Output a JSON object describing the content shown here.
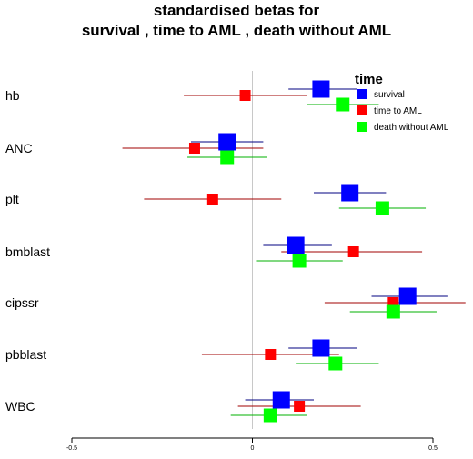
{
  "chart_data": {
    "type": "scatter",
    "title_lines": [
      "standardised betas for",
      "survival , time to AML , death without AML"
    ],
    "xlim": [
      -0.5,
      0.5
    ],
    "x_ticks": [
      -0.5,
      0,
      0.5
    ],
    "x_tick_labels": [
      "-0.5",
      "0",
      "0.5"
    ],
    "categories": [
      "hb",
      "ANC",
      "plt",
      "bmblast",
      "cipssr",
      "pbblast",
      "WBC"
    ],
    "reference_line_x": 0,
    "legend": {
      "title": "time",
      "placement": "top-right"
    },
    "series": [
      {
        "name": "survival",
        "color": "#0000ff",
        "estimates": [
          0.19,
          -0.07,
          0.27,
          0.12,
          0.43,
          0.19,
          0.08
        ],
        "lower": [
          0.1,
          -0.17,
          0.17,
          0.03,
          0.33,
          0.1,
          -0.02
        ],
        "upper": [
          0.29,
          0.03,
          0.37,
          0.22,
          0.54,
          0.29,
          0.17
        ]
      },
      {
        "name": "time to AML",
        "color": "#ff0000",
        "estimates": [
          -0.02,
          -0.16,
          -0.11,
          0.28,
          0.39,
          0.05,
          0.13
        ],
        "lower": [
          -0.19,
          -0.36,
          -0.3,
          0.08,
          0.2,
          -0.14,
          -0.04
        ],
        "upper": [
          0.15,
          0.03,
          0.08,
          0.47,
          0.59,
          0.24,
          0.3
        ]
      },
      {
        "name": "death without AML",
        "color": "#00ff00",
        "estimates": [
          0.25,
          -0.07,
          0.36,
          0.13,
          0.39,
          0.23,
          0.05
        ],
        "lower": [
          0.15,
          -0.18,
          0.24,
          0.01,
          0.27,
          0.12,
          -0.06
        ],
        "upper": [
          0.35,
          0.04,
          0.48,
          0.25,
          0.51,
          0.35,
          0.15
        ]
      }
    ]
  }
}
